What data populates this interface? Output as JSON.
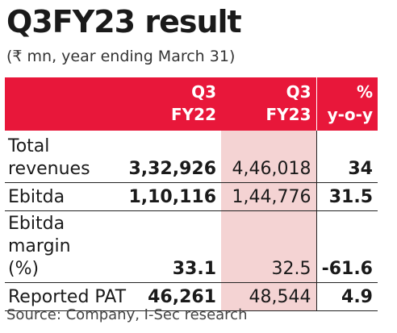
{
  "title": "Q3FY23 result",
  "subtitle": "(₹ mn, year ending March 31)",
  "source": "Source: Company, I-Sec research",
  "colors": {
    "header_bg": "#e8173a",
    "header_text": "#ffffff",
    "highlight": "#f4d3d3"
  },
  "chart_data": {
    "type": "table",
    "columns": [
      {
        "line1": "",
        "line2": ""
      },
      {
        "line1": "Q3",
        "line2": "FY22"
      },
      {
        "line1": "Q3",
        "line2": "FY23"
      },
      {
        "line1": "%",
        "line2": "y-o-y"
      }
    ],
    "rows": [
      {
        "label": "Total revenues",
        "q3fy22": "3,32,926",
        "q3fy23": "4,46,018",
        "yoy": "34"
      },
      {
        "label": "Ebitda",
        "q3fy22": "1,10,116",
        "q3fy23": "1,44,776",
        "yoy": "31.5"
      },
      {
        "label": "Ebitda margin (%)",
        "q3fy22": "33.1",
        "q3fy23": "32.5",
        "yoy": "-61.6"
      },
      {
        "label": "Reported PAT",
        "q3fy22": "46,261",
        "q3fy23": "48,544",
        "yoy": "4.9"
      }
    ]
  }
}
